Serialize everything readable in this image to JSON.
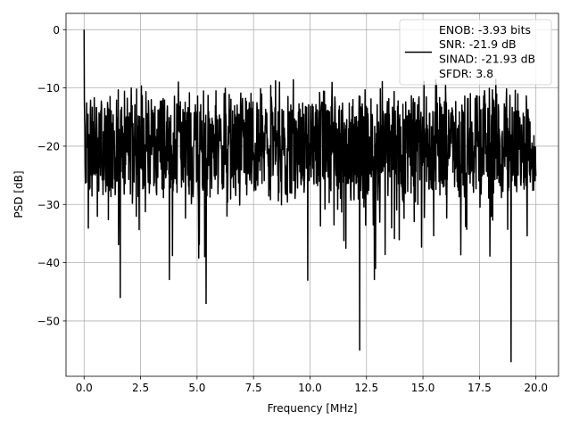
{
  "chart_data": {
    "type": "line",
    "title": "",
    "xlabel": "Frequency [MHz]",
    "ylabel": "PSD [dB]",
    "xlim": [
      -0.8,
      21.0
    ],
    "ylim": [
      -59.5,
      2.8
    ],
    "xticks": [
      0.0,
      2.5,
      5.0,
      7.5,
      10.0,
      12.5,
      15.0,
      17.5,
      20.0
    ],
    "xtick_labels": [
      "0.0",
      "2.5",
      "5.0",
      "7.5",
      "10.0",
      "12.5",
      "15.0",
      "17.5",
      "20.0"
    ],
    "yticks": [
      0,
      -10,
      -20,
      -30,
      -40,
      -50
    ],
    "ytick_labels": [
      "0",
      "−10",
      "−20",
      "−30",
      "−40",
      "−50"
    ],
    "grid": true,
    "legend_position": "top-right",
    "legend_lines": [
      "ENOB: -3.93 bits",
      "SNR: -21.9 dB",
      "SINAD: -21.93 dB",
      "SFDR: 3.8"
    ],
    "series": [
      {
        "color": "#000000",
        "x_range": [
          0.0,
          20.0
        ],
        "band_center_db": -20,
        "band_spread_db": 8,
        "dc_peak": {
          "x": 0.0,
          "y": 0.0
        },
        "notable_dips": [
          {
            "x": 1.6,
            "y": -46
          },
          {
            "x": 5.4,
            "y": -47
          },
          {
            "x": 9.9,
            "y": -43
          },
          {
            "x": 12.2,
            "y": -55
          },
          {
            "x": 12.9,
            "y": -41
          },
          {
            "x": 18.9,
            "y": -57
          }
        ]
      }
    ]
  }
}
